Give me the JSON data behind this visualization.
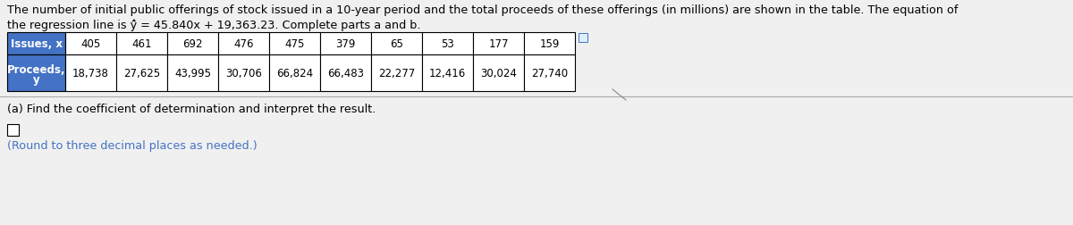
{
  "title_line1": "The number of initial public offerings of stock issued in a 10-year period and the total proceeds of these offerings (in millions) are shown in the table. The equation of",
  "title_line2": "the regression line is ŷ̂ = 45.840x + 19,363.23. Complete parts a and b.",
  "issues_label": "Issues, x",
  "proceeds_label1": "Proceeds,",
  "proceeds_label2": "y",
  "issues": [
    "405",
    "461",
    "692",
    "476",
    "475",
    "379",
    "65",
    "53",
    "177",
    "159"
  ],
  "proceeds": [
    "18,738",
    "27,625",
    "43,995",
    "30,706",
    "66,824",
    "66,483",
    "22,277",
    "12,416",
    "30,024",
    "27,740"
  ],
  "part_a_text": "(a) Find the coefficient of determination and interpret the result.",
  "round_text": "(Round to three decimal places as needed.)",
  "header_bg": "#4472c4",
  "header_text_color": "#ffffff",
  "cell_bg": "#ffffff",
  "grid_color": "#000000",
  "title_font_size": 9.2,
  "table_font_size": 8.5,
  "part_text_color": "#000000",
  "round_text_color": "#4472c4",
  "bg_color": "#f0f0f0",
  "separator_color": "#aaaaaa"
}
